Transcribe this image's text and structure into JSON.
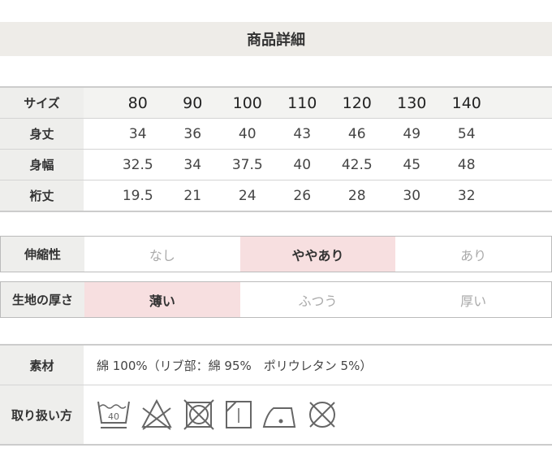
{
  "title": "商品詳細",
  "size_table": {
    "rows": [
      {
        "label": "サイズ",
        "values": [
          "80",
          "90",
          "100",
          "110",
          "120",
          "130",
          "140"
        ]
      },
      {
        "label": "身丈",
        "values": [
          "34",
          "36",
          "40",
          "43",
          "46",
          "49",
          "54"
        ]
      },
      {
        "label": "身幅",
        "values": [
          "32.5",
          "34",
          "37.5",
          "40",
          "42.5",
          "45",
          "48"
        ]
      },
      {
        "label": "裄丈",
        "values": [
          "19.5",
          "21",
          "24",
          "26",
          "28",
          "30",
          "32"
        ]
      }
    ]
  },
  "stretch": {
    "label": "伸縮性",
    "options": [
      "なし",
      "ややあり",
      "あり"
    ],
    "selected": "ややあり"
  },
  "thickness": {
    "label": "生地の厚さ",
    "options": [
      "薄い",
      "ふつう",
      "厚い"
    ],
    "selected": "薄い"
  },
  "material": {
    "label": "素材",
    "value": "綿 100%（リブ部：綿 95%　ポリウレタン 5%）"
  },
  "care": {
    "label": "取り扱い方",
    "icons": [
      "wash-40-icon",
      "no-bleach-icon",
      "no-tumble-dry-icon",
      "drip-dry-shade-icon",
      "iron-low-icon",
      "no-dry-clean-icon"
    ],
    "wash_temp": "40"
  },
  "colors": {
    "highlight": "#f7dfe0",
    "label_bg": "#eeeeec",
    "header_bg": "#eeece8"
  }
}
